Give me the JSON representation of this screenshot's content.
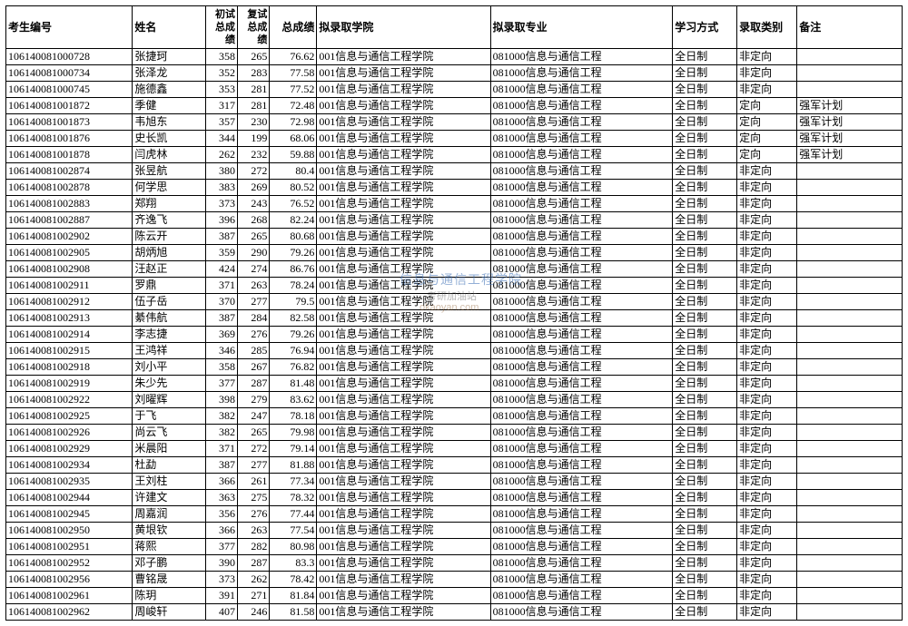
{
  "columns": [
    "考生编号",
    "姓名",
    "初试总成绩",
    "复试总成绩",
    "总成绩",
    "拟录取学院",
    "拟录取专业",
    "学习方式",
    "录取类别",
    "备注"
  ],
  "college": "001信息与通信工程学院",
  "major": "081000信息与通信工程",
  "mode": "全日制",
  "type_normal": "非定向",
  "type_directed": "定向",
  "note_army": "强军计划",
  "watermark": {
    "line1": "信息与通信工程学院",
    "line2": "考研加油站",
    "line3": "okaoyan.com"
  },
  "rows": [
    {
      "id": "106140081000728",
      "name": "张捷珂",
      "s1": 358,
      "s2": 265,
      "tot": "76.62",
      "type": "非定向",
      "note": ""
    },
    {
      "id": "106140081000734",
      "name": "张泽龙",
      "s1": 352,
      "s2": 283,
      "tot": "77.58",
      "type": "非定向",
      "note": ""
    },
    {
      "id": "106140081000745",
      "name": "施德鑫",
      "s1": 353,
      "s2": 281,
      "tot": "77.52",
      "type": "非定向",
      "note": ""
    },
    {
      "id": "106140081001872",
      "name": "季健",
      "s1": 317,
      "s2": 281,
      "tot": "72.48",
      "type": "定向",
      "note": "强军计划"
    },
    {
      "id": "106140081001873",
      "name": "韦旭东",
      "s1": 357,
      "s2": 230,
      "tot": "72.98",
      "type": "定向",
      "note": "强军计划"
    },
    {
      "id": "106140081001876",
      "name": "史长凯",
      "s1": 344,
      "s2": 199,
      "tot": "68.06",
      "type": "定向",
      "note": "强军计划"
    },
    {
      "id": "106140081001878",
      "name": "闫虎林",
      "s1": 262,
      "s2": 232,
      "tot": "59.88",
      "type": "定向",
      "note": "强军计划"
    },
    {
      "id": "106140081002874",
      "name": "张昱航",
      "s1": 380,
      "s2": 272,
      "tot": "80.4",
      "type": "非定向",
      "note": ""
    },
    {
      "id": "106140081002878",
      "name": "何学思",
      "s1": 383,
      "s2": 269,
      "tot": "80.52",
      "type": "非定向",
      "note": ""
    },
    {
      "id": "106140081002883",
      "name": "郑翔",
      "s1": 373,
      "s2": 243,
      "tot": "76.52",
      "type": "非定向",
      "note": ""
    },
    {
      "id": "106140081002887",
      "name": "齐逸飞",
      "s1": 396,
      "s2": 268,
      "tot": "82.24",
      "type": "非定向",
      "note": ""
    },
    {
      "id": "106140081002902",
      "name": "陈云开",
      "s1": 387,
      "s2": 265,
      "tot": "80.68",
      "type": "非定向",
      "note": ""
    },
    {
      "id": "106140081002905",
      "name": "胡炳旭",
      "s1": 359,
      "s2": 290,
      "tot": "79.26",
      "type": "非定向",
      "note": ""
    },
    {
      "id": "106140081002908",
      "name": "汪赵正",
      "s1": 424,
      "s2": 274,
      "tot": "86.76",
      "type": "非定向",
      "note": ""
    },
    {
      "id": "106140081002911",
      "name": "罗鼎",
      "s1": 371,
      "s2": 263,
      "tot": "78.24",
      "type": "非定向",
      "note": ""
    },
    {
      "id": "106140081002912",
      "name": "伍子岳",
      "s1": 370,
      "s2": 277,
      "tot": "79.5",
      "type": "非定向",
      "note": ""
    },
    {
      "id": "106140081002913",
      "name": "綦伟航",
      "s1": 387,
      "s2": 284,
      "tot": "82.58",
      "type": "非定向",
      "note": ""
    },
    {
      "id": "106140081002914",
      "name": "李志捷",
      "s1": 369,
      "s2": 276,
      "tot": "79.26",
      "type": "非定向",
      "note": ""
    },
    {
      "id": "106140081002915",
      "name": "王鸿祥",
      "s1": 346,
      "s2": 285,
      "tot": "76.94",
      "type": "非定向",
      "note": ""
    },
    {
      "id": "106140081002918",
      "name": "刘小平",
      "s1": 358,
      "s2": 267,
      "tot": "76.82",
      "type": "非定向",
      "note": ""
    },
    {
      "id": "106140081002919",
      "name": "朱少先",
      "s1": 377,
      "s2": 287,
      "tot": "81.48",
      "type": "非定向",
      "note": ""
    },
    {
      "id": "106140081002922",
      "name": "刘曜辉",
      "s1": 398,
      "s2": 279,
      "tot": "83.62",
      "type": "非定向",
      "note": ""
    },
    {
      "id": "106140081002925",
      "name": "于飞",
      "s1": 382,
      "s2": 247,
      "tot": "78.18",
      "type": "非定向",
      "note": ""
    },
    {
      "id": "106140081002926",
      "name": "尚云飞",
      "s1": 382,
      "s2": 265,
      "tot": "79.98",
      "type": "非定向",
      "note": ""
    },
    {
      "id": "106140081002929",
      "name": "米晨阳",
      "s1": 371,
      "s2": 272,
      "tot": "79.14",
      "type": "非定向",
      "note": ""
    },
    {
      "id": "106140081002934",
      "name": "杜勐",
      "s1": 387,
      "s2": 277,
      "tot": "81.88",
      "type": "非定向",
      "note": ""
    },
    {
      "id": "106140081002935",
      "name": "王刘柱",
      "s1": 366,
      "s2": 261,
      "tot": "77.34",
      "type": "非定向",
      "note": ""
    },
    {
      "id": "106140081002944",
      "name": "许建文",
      "s1": 363,
      "s2": 275,
      "tot": "78.32",
      "type": "非定向",
      "note": ""
    },
    {
      "id": "106140081002945",
      "name": "周嘉润",
      "s1": 356,
      "s2": 276,
      "tot": "77.44",
      "type": "非定向",
      "note": ""
    },
    {
      "id": "106140081002950",
      "name": "黄垠钦",
      "s1": 366,
      "s2": 263,
      "tot": "77.54",
      "type": "非定向",
      "note": ""
    },
    {
      "id": "106140081002951",
      "name": "蒋熙",
      "s1": 377,
      "s2": 282,
      "tot": "80.98",
      "type": "非定向",
      "note": ""
    },
    {
      "id": "106140081002952",
      "name": "邓子鹏",
      "s1": 390,
      "s2": 287,
      "tot": "83.3",
      "type": "非定向",
      "note": ""
    },
    {
      "id": "106140081002956",
      "name": "曹铭晟",
      "s1": 373,
      "s2": 262,
      "tot": "78.42",
      "type": "非定向",
      "note": ""
    },
    {
      "id": "106140081002961",
      "name": "陈玥",
      "s1": 391,
      "s2": 271,
      "tot": "81.84",
      "type": "非定向",
      "note": ""
    },
    {
      "id": "106140081002962",
      "name": "周峻轩",
      "s1": 407,
      "s2": 246,
      "tot": "81.58",
      "type": "非定向",
      "note": ""
    }
  ]
}
